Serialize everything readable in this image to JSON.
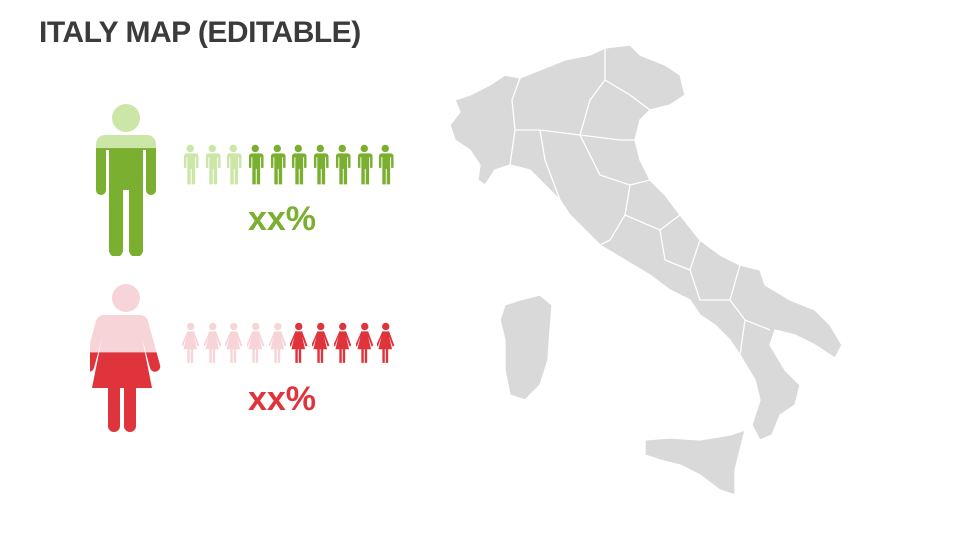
{
  "title": "ITALY MAP (EDITABLE)",
  "male": {
    "percent_label": "xx%",
    "icons_total": 10,
    "icons_filled": 7,
    "fill_fraction": 0.71,
    "color": "#7aaf2f",
    "light_color": "#cce6a8"
  },
  "female": {
    "percent_label": "xx%",
    "icons_total": 10,
    "icons_filled": 5,
    "fill_fraction": 0.55,
    "color": "#e0343d",
    "light_color": "#f7d4d7"
  },
  "map": {
    "fill": "#d9d9d9",
    "border": "#ffffff"
  }
}
